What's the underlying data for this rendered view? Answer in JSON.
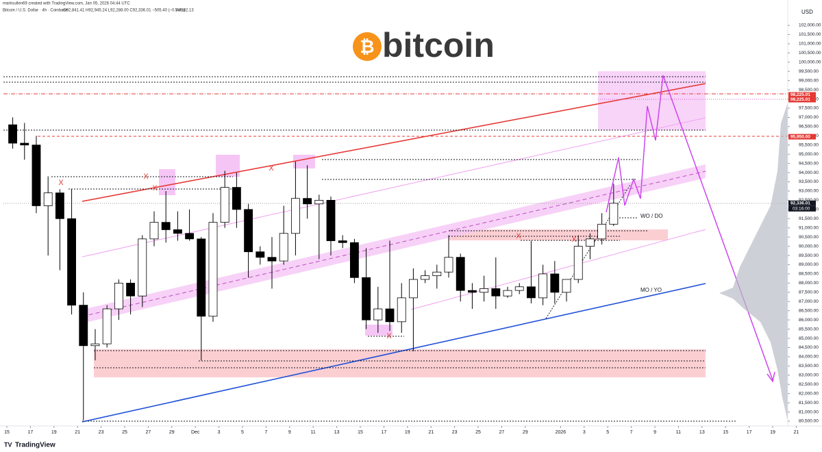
{
  "chart_data": {
    "type": "candlestick",
    "credit": "marksullen69 created with TradingView.com, Jan 05, 2026 04:44 UTC",
    "title": "Bitcoin / U.S. Dollar · 4h · Coinbase",
    "ohlc_text": "O92,841.41 H92,945.24 L92,288.00 C92,336.01 −505.40 (−0.54%)",
    "volume_text": "Vol182.13",
    "logo_text": "bitcoin",
    "logo_symbol": "₿",
    "brand": "TradingView",
    "currency": "USD",
    "annotations": [
      "WO / DO",
      "MO / YO"
    ],
    "markers": [
      "X",
      "X",
      "X",
      "X",
      "X",
      "X",
      "X"
    ],
    "up_color": "#ffffff",
    "down_color": "#000000",
    "wick_color": "#000000",
    "grid": false,
    "x": [
      0,
      1,
      2,
      3,
      4,
      5,
      6,
      7,
      8,
      9,
      10,
      11,
      12,
      13,
      14,
      15,
      16,
      17,
      18,
      19,
      20,
      21,
      22,
      23,
      24,
      25,
      26,
      27,
      28,
      29,
      30,
      31,
      32,
      33,
      34,
      35,
      36,
      37,
      38,
      39,
      40,
      41,
      42,
      43,
      44,
      45,
      46,
      47,
      48,
      49,
      50,
      51
    ],
    "open": [
      96600,
      95600,
      95500,
      92200,
      92900,
      91500,
      86800,
      84600,
      84700,
      86600,
      88000,
      87300,
      90400,
      91300,
      90900,
      90700,
      90400,
      86200,
      91300,
      93200,
      92000,
      89700,
      89400,
      89200,
      90700,
      92600,
      92300,
      92500,
      90300,
      90200,
      88300,
      86000,
      86600,
      85900,
      87200,
      88200,
      88400,
      88600,
      89400,
      87600,
      87500,
      87700,
      87300,
      87600,
      87800,
      87200,
      88500,
      87500,
      88200,
      90000,
      90400,
      91200
    ],
    "high": [
      97000,
      96700,
      96000,
      93800,
      93100,
      93100,
      87500,
      85500,
      86800,
      88200,
      88200,
      90600,
      91900,
      93000,
      91900,
      92000,
      90500,
      91800,
      94100,
      94000,
      92300,
      90000,
      90500,
      92200,
      94600,
      94400,
      92800,
      92700,
      90600,
      90400,
      89900,
      87800,
      90300,
      88000,
      88800,
      88700,
      89000,
      90600,
      89600,
      88000,
      88400,
      89400,
      87800,
      88000,
      90300,
      89000,
      89200,
      88200,
      90600,
      90700,
      91800,
      93400
    ],
    "low": [
      95300,
      94700,
      91800,
      89500,
      88700,
      86300,
      80550,
      83800,
      84500,
      86000,
      86300,
      86700,
      90000,
      90200,
      90300,
      90300,
      83800,
      85900,
      91000,
      91000,
      88300,
      89000,
      87700,
      89000,
      89500,
      91500,
      89300,
      89500,
      89900,
      88000,
      85500,
      85300,
      85400,
      85300,
      84300,
      88000,
      87700,
      88300,
      87000,
      86600,
      87000,
      86600,
      87200,
      87400,
      86900,
      86800,
      86900,
      87000,
      88000,
      89300,
      90100,
      91100
    ],
    "close": [
      95600,
      95500,
      92200,
      92900,
      91500,
      86800,
      84600,
      84700,
      86600,
      88000,
      87300,
      90400,
      91300,
      90900,
      90700,
      90400,
      86200,
      91300,
      93200,
      92000,
      89700,
      89400,
      89200,
      90700,
      92600,
      92300,
      92500,
      90300,
      90200,
      88300,
      86000,
      86600,
      85900,
      87200,
      88200,
      88400,
      88600,
      89400,
      87600,
      87500,
      87700,
      87300,
      87600,
      87800,
      87200,
      88500,
      87500,
      88200,
      90000,
      90400,
      91200,
      92336.01
    ],
    "xlim": [
      -0.58,
      67.73
    ],
    "xticks": [
      {
        "value": 0,
        "label": "15"
      },
      {
        "value": 2,
        "label": "17"
      },
      {
        "value": 4,
        "label": "19"
      },
      {
        "value": 6,
        "label": "21"
      },
      {
        "value": 8,
        "label": "23"
      },
      {
        "value": 10,
        "label": "25"
      },
      {
        "value": 12,
        "label": "27"
      },
      {
        "value": 14,
        "label": "29"
      },
      {
        "value": 16,
        "label": "Dec"
      },
      {
        "value": 18,
        "label": "3"
      },
      {
        "value": 20,
        "label": "5"
      },
      {
        "value": 22,
        "label": "7"
      },
      {
        "value": 24,
        "label": "9"
      },
      {
        "value": 26,
        "label": "11"
      },
      {
        "value": 28,
        "label": "13"
      },
      {
        "value": 30,
        "label": "15"
      },
      {
        "value": 32,
        "label": "17"
      },
      {
        "value": 34,
        "label": "19"
      },
      {
        "value": 36,
        "label": "21"
      },
      {
        "value": 38,
        "label": "23"
      },
      {
        "value": 40,
        "label": "25"
      },
      {
        "value": 42,
        "label": "27"
      },
      {
        "value": 44,
        "label": "29"
      },
      {
        "value": 47,
        "label": "2026"
      },
      {
        "value": 49,
        "label": "3"
      },
      {
        "value": 51,
        "label": "5"
      },
      {
        "value": 53,
        "label": "7"
      },
      {
        "value": 55,
        "label": "9"
      },
      {
        "value": 57,
        "label": "11"
      },
      {
        "value": 59,
        "label": "13"
      },
      {
        "value": 61,
        "label": "15"
      },
      {
        "value": 63,
        "label": "17"
      },
      {
        "value": 65,
        "label": "19"
      },
      {
        "value": 67,
        "label": "21"
      }
    ],
    "ylim": [
      80240,
      102930
    ],
    "yticks": [
      {
        "value": 80500,
        "label": "80,500.00"
      },
      {
        "value": 81000,
        "label": "81,000.00"
      },
      {
        "value": 81500,
        "label": "81,500.00"
      },
      {
        "value": 82000,
        "label": "82,000.00"
      },
      {
        "value": 82500,
        "label": "82,500.00"
      },
      {
        "value": 83000,
        "label": "83,000.00"
      },
      {
        "value": 83500,
        "label": "83,500.00"
      },
      {
        "value": 84000,
        "label": "84,000.00"
      },
      {
        "value": 84500,
        "label": "84,500.00"
      },
      {
        "value": 85000,
        "label": "85,000.00"
      },
      {
        "value": 85500,
        "label": "85,500.00"
      },
      {
        "value": 86000,
        "label": "86,000.00"
      },
      {
        "value": 86500,
        "label": "86,500.00"
      },
      {
        "value": 87000,
        "label": "87,000.00"
      },
      {
        "value": 87500,
        "label": "87,500.00"
      },
      {
        "value": 88000,
        "label": "88,000.00"
      },
      {
        "value": 88500,
        "label": "88,500.00"
      },
      {
        "value": 89000,
        "label": "89,000.00"
      },
      {
        "value": 89500,
        "label": "89,500.00"
      },
      {
        "value": 90000,
        "label": "90,000.00"
      },
      {
        "value": 90500,
        "label": "90,500.00"
      },
      {
        "value": 91000,
        "label": "91,000.00"
      },
      {
        "value": 91500,
        "label": "91,500.00"
      },
      {
        "value": 92000,
        "label": "92,000.00"
      },
      {
        "value": 92500,
        "label": "92,500.00"
      },
      {
        "value": 93000,
        "label": "93,000.00"
      },
      {
        "value": 93500,
        "label": "93,500.00"
      },
      {
        "value": 94000,
        "label": "94,000.00"
      },
      {
        "value": 94500,
        "label": "94,500.00"
      },
      {
        "value": 95000,
        "label": "95,000.00"
      },
      {
        "value": 95500,
        "label": "95,500.00"
      },
      {
        "value": 96000,
        "label": "96,000.00"
      },
      {
        "value": 96500,
        "label": "96,500.00"
      },
      {
        "value": 97000,
        "label": "97,000.00"
      },
      {
        "value": 97500,
        "label": "97,500.00"
      },
      {
        "value": 98000,
        "label": "98,000.00"
      },
      {
        "value": 98500,
        "label": "98,500.00"
      },
      {
        "value": 99000,
        "label": "99,000.00"
      },
      {
        "value": 99500,
        "label": "99,500.00"
      },
      {
        "value": 100000,
        "label": "100,000.00"
      },
      {
        "value": 100500,
        "label": "100,500.00"
      },
      {
        "value": 101000,
        "label": "101,000.00"
      },
      {
        "value": 101500,
        "label": "101,500.00"
      },
      {
        "value": 102000,
        "label": "102,000.00"
      }
    ],
    "price_tags": [
      {
        "value": 98225.01,
        "label": "98,225.01",
        "color": "#e53935"
      },
      {
        "value": 98225.01,
        "label": "98,225.01",
        "color": "#e53935"
      },
      {
        "value": 95950,
        "label": "95,950.00",
        "color": "#e53935"
      },
      {
        "value": 92336.01,
        "label": "92,336.01",
        "color": "#131722"
      }
    ],
    "countdown": "03:16:00"
  }
}
